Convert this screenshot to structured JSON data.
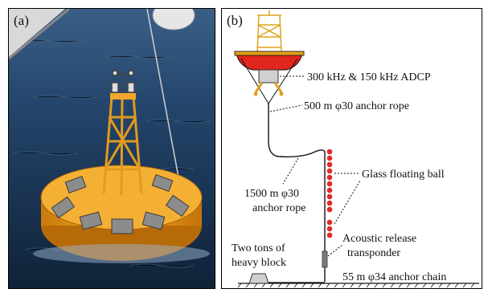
{
  "panel_a": {
    "label": "(a)"
  },
  "panel_b": {
    "label": "(b)",
    "annotations": {
      "adcp": "300 kHz & 150 kHz ADCP",
      "anchor_rope_top": "500 m φ30 anchor rope",
      "glass_ball": "Glass floating ball",
      "anchor_rope_mid_1": "1500 m φ30",
      "anchor_rope_mid_2": "anchor rope",
      "release_1": "Acoustic release",
      "release_2": "transponder",
      "block_1": "Two tons of",
      "block_2": "heavy block",
      "chain": "55 m φ34 anchor chain"
    },
    "glass_ball_count": 14
  },
  "colors": {
    "buoy_yellow": "#f0a41c",
    "buoy_red": "#e0261e",
    "ball_red": "#e02a2a",
    "sea_blue": "#1f3f63"
  }
}
